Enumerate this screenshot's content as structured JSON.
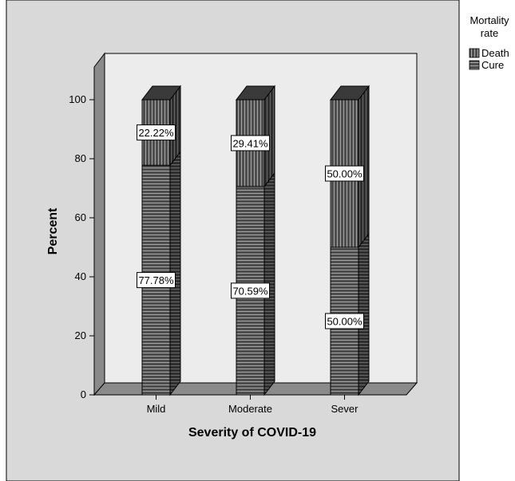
{
  "chart_data": {
    "type": "bar",
    "stacked": true,
    "three_d": true,
    "categories": [
      "Mild",
      "Moderate",
      "Sever"
    ],
    "series": [
      {
        "name": "Cure",
        "values": [
          77.78,
          70.59,
          50.0
        ],
        "labels": [
          "77.78%",
          "70.59%",
          "50.00%"
        ],
        "pattern": "horizontal-stripes"
      },
      {
        "name": "Death",
        "values": [
          22.22,
          29.41,
          50.0
        ],
        "labels": [
          "22.22%",
          "29.41%",
          "50.00%"
        ],
        "pattern": "vertical-stripes"
      }
    ],
    "xlabel": "Severity of COVID-19",
    "ylabel": "Percent",
    "ylim": [
      0,
      100
    ],
    "yticks": [
      0,
      20,
      40,
      60,
      80,
      100
    ],
    "legend": {
      "title_lines": [
        "Mortality",
        "rate"
      ],
      "entries": [
        "Death",
        "Cure"
      ],
      "placement": "top-right"
    },
    "colors": {
      "outer_background": "#d9d9d9",
      "plot_background": "#ececec",
      "floor": "#8a8a8a",
      "bar_dark": "#4d4d4d",
      "bar_stripe": "#a0a0a0"
    }
  }
}
